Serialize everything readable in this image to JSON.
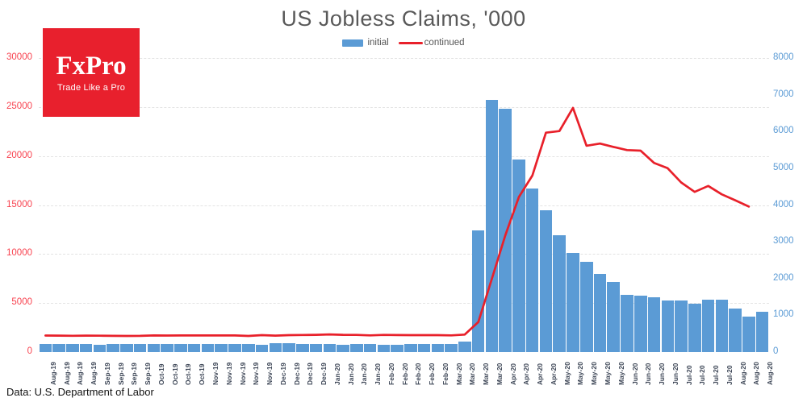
{
  "title": "US Jobless Claims, '000",
  "footer": {
    "text": "Data: U.S. Department of Labor"
  },
  "logo": {
    "brand": "FxPro",
    "tagline": "Trade Like a Pro",
    "background": "#e8202d"
  },
  "chart_data": {
    "type": "bar",
    "title": "US Jobless Claims, '000",
    "legend_position": "top-center",
    "grid": "horizontal-dashed",
    "legend": [
      {
        "name": "initial",
        "type": "bar",
        "color": "#5b9bd5"
      },
      {
        "name": "continued",
        "type": "line",
        "color": "#e8202a"
      }
    ],
    "left_axis": {
      "label_color": "#f8424f",
      "min": 0,
      "max": 30000,
      "step": 5000,
      "ticks": [
        "30000",
        "25000",
        "20000",
        "15000",
        "10000",
        "5000",
        "0"
      ]
    },
    "right_axis": {
      "label_color": "#5b9bd5",
      "min": 0,
      "max": 8000,
      "step": 1000,
      "ticks": [
        "8000",
        "7000",
        "6000",
        "5000",
        "4000",
        "3000",
        "2000",
        "1000",
        "0"
      ]
    },
    "categories": [
      "Aug-19",
      "Aug-19",
      "Aug-19",
      "Aug-19",
      "Sep-19",
      "Sep-19",
      "Sep-19",
      "Sep-19",
      "Oct-19",
      "Oct-19",
      "Oct-19",
      "Oct-19",
      "Nov-19",
      "Nov-19",
      "Nov-19",
      "Nov-19",
      "Nov-19",
      "Dec-19",
      "Dec-19",
      "Dec-19",
      "Dec-19",
      "Jan-20",
      "Jan-20",
      "Jan-20",
      "Jan-20",
      "Feb-20",
      "Feb-20",
      "Feb-20",
      "Feb-20",
      "Feb-20",
      "Mar-20",
      "Mar-20",
      "Mar-20",
      "Mar-20",
      "Apr-20",
      "Apr-20",
      "Apr-20",
      "Apr-20",
      "May-20",
      "May-20",
      "May-20",
      "May-20",
      "May-20",
      "Jun-20",
      "Jun-20",
      "Jun-20",
      "Jun-20",
      "Jul-20",
      "Jul-20",
      "Jul-20",
      "Jul-20",
      "Aug-20",
      "Aug-20",
      "Aug-20"
    ],
    "series": [
      {
        "name": "initial",
        "type": "bar",
        "axis": "right",
        "color": "#5b9bd5",
        "values": [
          221,
          211,
          216,
          217,
          206,
          210,
          213,
          220,
          210,
          218,
          213,
          218,
          211,
          225,
          228,
          213,
          203,
          252,
          235,
          224,
          223,
          214,
          204,
          223,
          217,
          201,
          204,
          215,
          220,
          217,
          211,
          282,
          3307,
          6867,
          6615,
          5237,
          4442,
          3867,
          3176,
          2687,
          2446,
          2123,
          1897,
          1566,
          1540,
          1482,
          1408,
          1413,
          1308,
          1416,
          1434,
          1186,
          971,
          1106
        ]
      },
      {
        "name": "continued",
        "type": "line",
        "axis": "left",
        "color": "#e8202a",
        "values": [
          1686,
          1677,
          1662,
          1674,
          1667,
          1656,
          1647,
          1655,
          1690,
          1683,
          1691,
          1692,
          1692,
          1697,
          1693,
          1640,
          1722,
          1673,
          1728,
          1743,
          1757,
          1803,
          1760,
          1747,
          1703,
          1751,
          1734,
          1726,
          1729,
          1722,
          1702,
          1784,
          3059,
          7446,
          11914,
          15819,
          18011,
          22377,
          22548,
          24912,
          21052,
          21268,
          20929,
          20606,
          20544,
          19290,
          18760,
          17304,
          16342,
          16951,
          16090,
          15486,
          14844,
          null
        ]
      }
    ]
  }
}
